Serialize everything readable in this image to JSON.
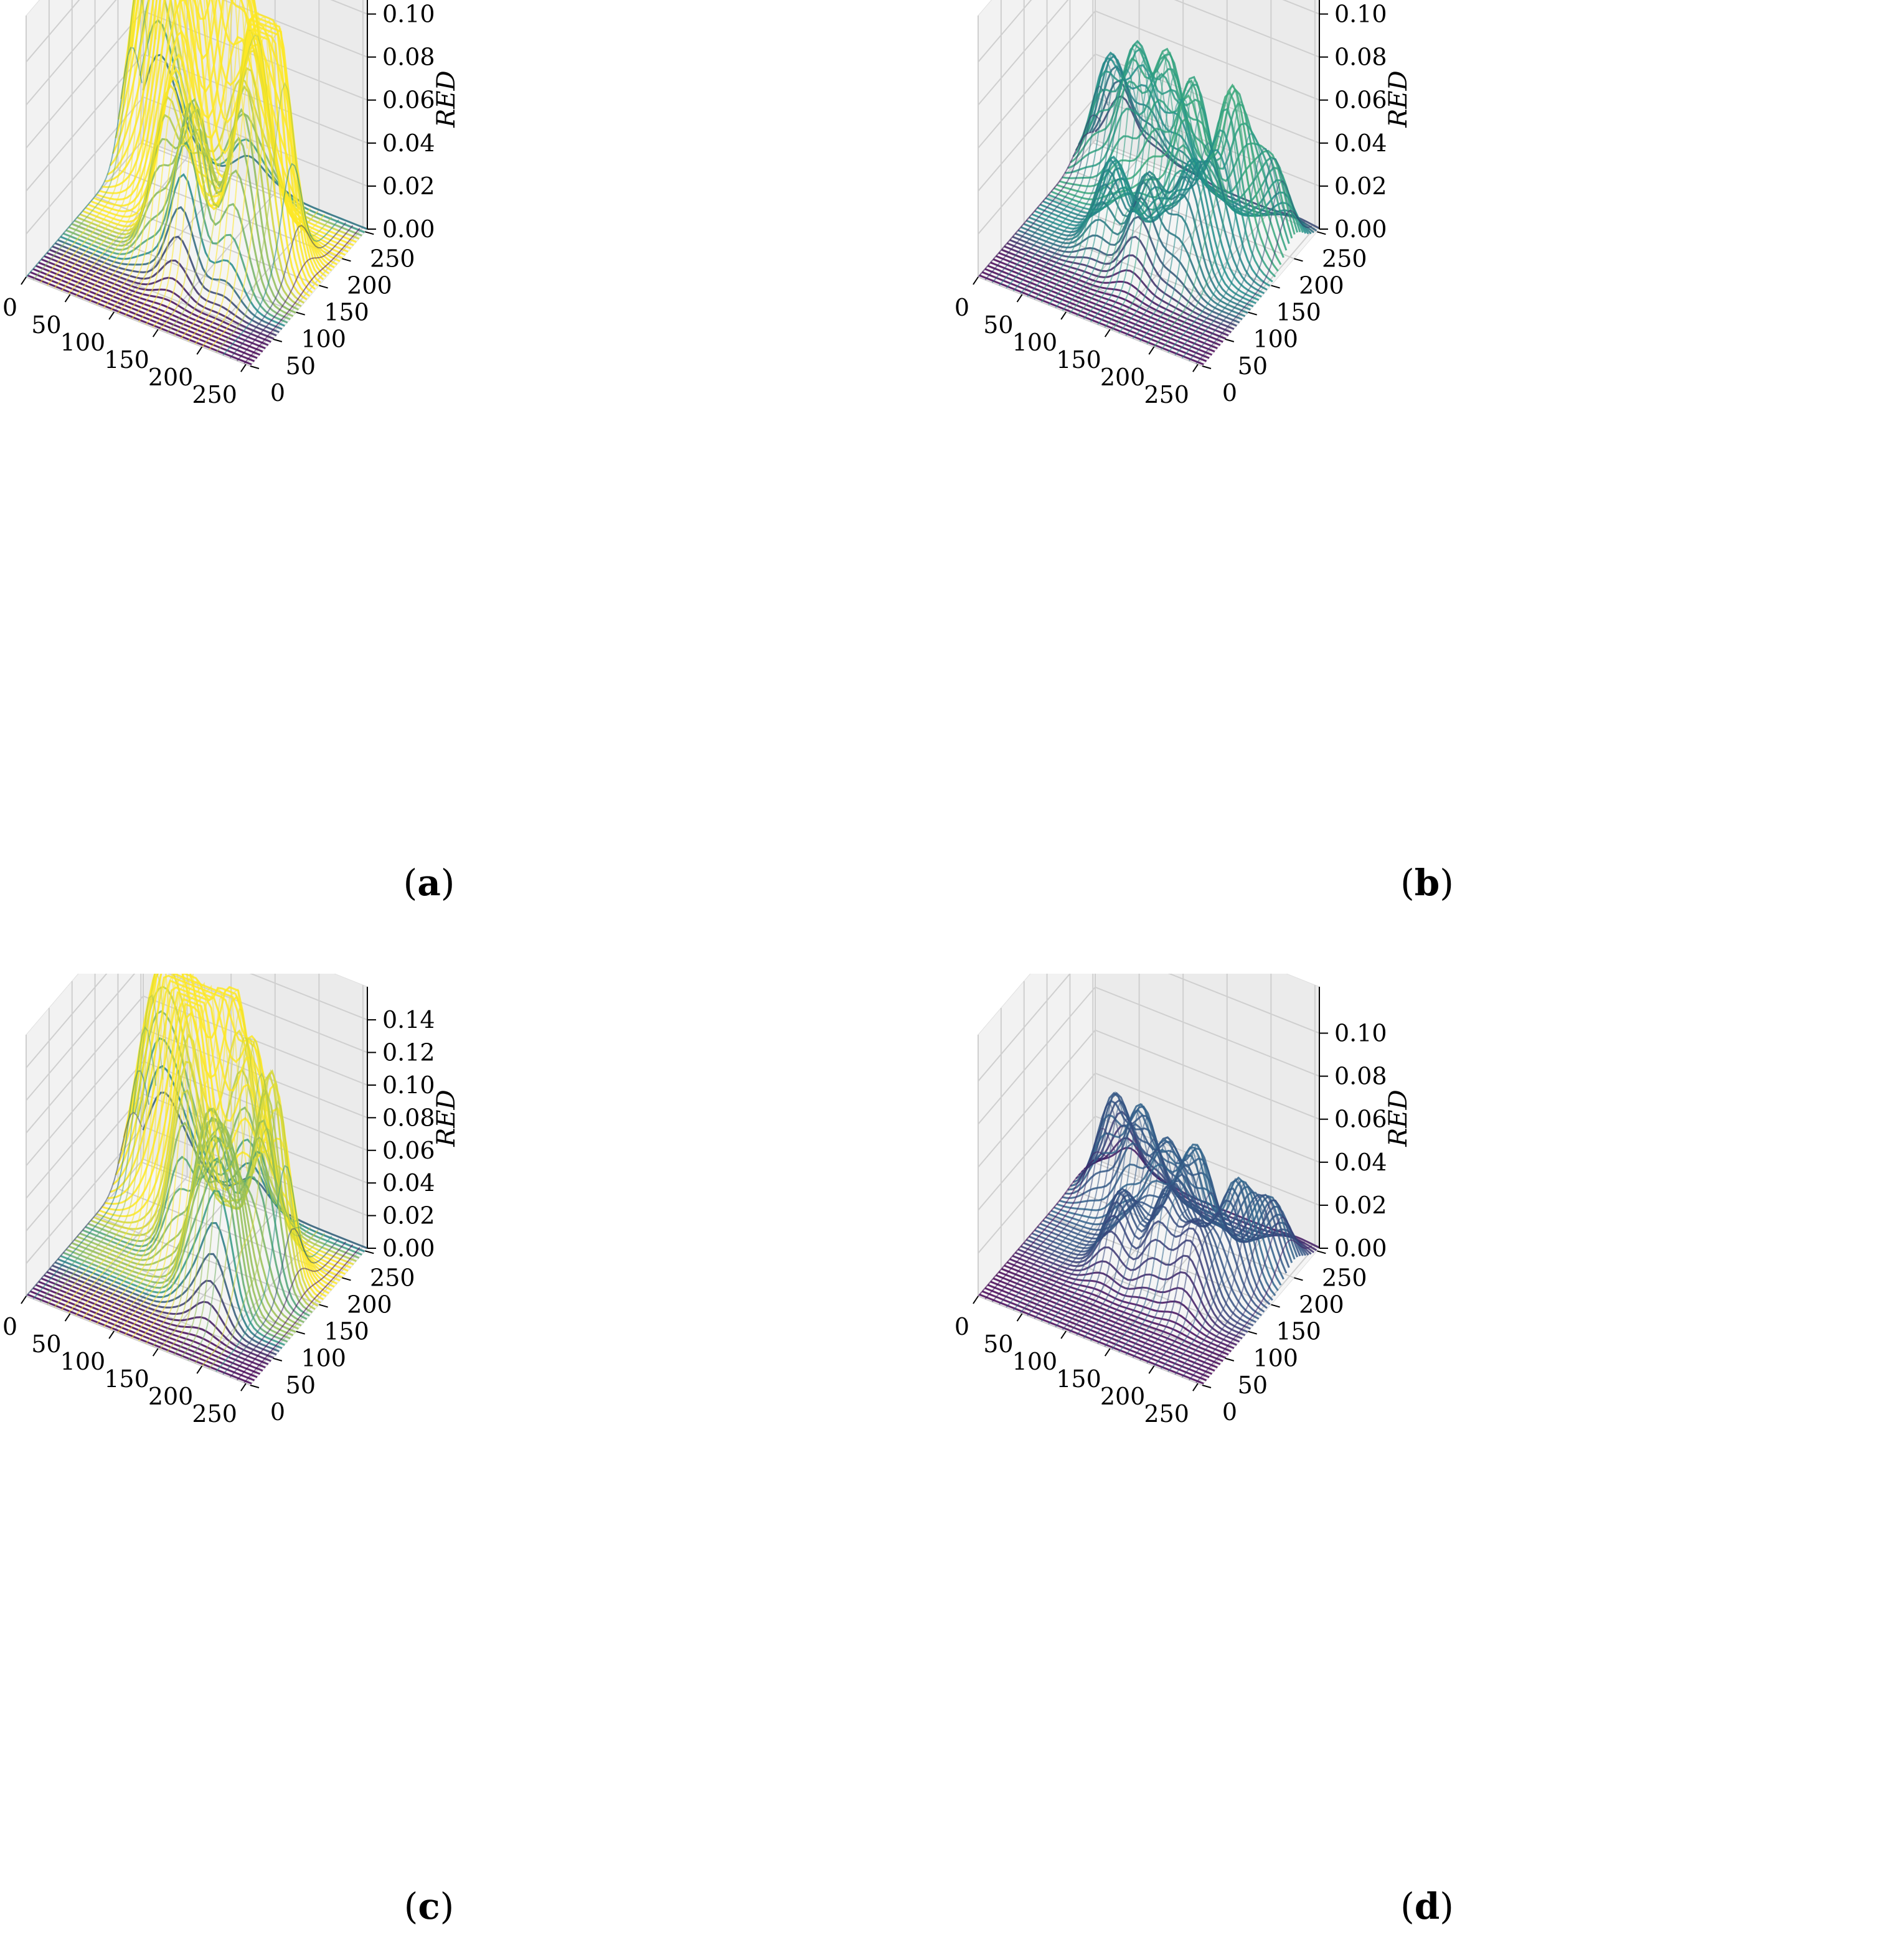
{
  "chart_data": [
    {
      "id": "a",
      "type": "surface3d",
      "caption": "a",
      "zlabel": "RED",
      "x_ticks": [
        "0",
        "50",
        "100",
        "150",
        "200",
        "250"
      ],
      "y_ticks": [
        "0",
        "50",
        "100",
        "150",
        "200",
        "250"
      ],
      "z_ticks": [
        "0.00",
        "0.02",
        "0.04",
        "0.06",
        "0.08",
        "0.10"
      ],
      "xlim": [
        0,
        255
      ],
      "ylim": [
        0,
        255
      ],
      "zlim": [
        0,
        0.11
      ],
      "colormap": "viridis",
      "colors": {
        "low": "#440154",
        "mid": "#21918c",
        "high": "#fde725"
      },
      "peaks": [
        {
          "x": 15,
          "y": 230,
          "z": 0.07
        },
        {
          "x": 35,
          "y": 215,
          "z": 0.09
        },
        {
          "x": 60,
          "y": 200,
          "z": 0.1
        },
        {
          "x": 80,
          "y": 180,
          "z": 0.105
        },
        {
          "x": 105,
          "y": 170,
          "z": 0.095
        },
        {
          "x": 120,
          "y": 210,
          "z": 0.11
        },
        {
          "x": 150,
          "y": 200,
          "z": 0.09
        },
        {
          "x": 175,
          "y": 160,
          "z": 0.095
        },
        {
          "x": 205,
          "y": 150,
          "z": 0.105
        },
        {
          "x": 100,
          "y": 120,
          "z": 0.065
        },
        {
          "x": 140,
          "y": 95,
          "z": 0.08
        },
        {
          "x": 190,
          "y": 110,
          "z": 0.075
        }
      ]
    },
    {
      "id": "b",
      "type": "surface3d",
      "caption": "b",
      "zlabel": "RED",
      "x_ticks": [
        "0",
        "50",
        "100",
        "150",
        "200",
        "250"
      ],
      "y_ticks": [
        "0",
        "50",
        "100",
        "150",
        "200",
        "250"
      ],
      "z_ticks": [
        "0.00",
        "0.02",
        "0.04",
        "0.06",
        "0.08",
        "0.10"
      ],
      "xlim": [
        0,
        255
      ],
      "ylim": [
        0,
        255
      ],
      "zlim": [
        0,
        0.11
      ],
      "colormap": "viridis",
      "colors": {
        "low": "#440154",
        "mid": "#21918c",
        "high": "#5ec962"
      },
      "peaks": [
        {
          "x": 30,
          "y": 230,
          "z": 0.05
        },
        {
          "x": 70,
          "y": 210,
          "z": 0.065
        },
        {
          "x": 110,
          "y": 200,
          "z": 0.07
        },
        {
          "x": 150,
          "y": 180,
          "z": 0.07
        },
        {
          "x": 200,
          "y": 170,
          "z": 0.075
        },
        {
          "x": 180,
          "y": 120,
          "z": 0.05
        },
        {
          "x": 140,
          "y": 100,
          "z": 0.045
        },
        {
          "x": 230,
          "y": 200,
          "z": 0.04
        },
        {
          "x": 90,
          "y": 120,
          "z": 0.04
        }
      ]
    },
    {
      "id": "c",
      "type": "surface3d",
      "caption": "c",
      "zlabel": "RED",
      "x_ticks": [
        "0",
        "50",
        "100",
        "150",
        "200",
        "250"
      ],
      "y_ticks": [
        "0",
        "50",
        "100",
        "150",
        "200",
        "250"
      ],
      "z_ticks": [
        "0.00",
        "0.02",
        "0.04",
        "0.06",
        "0.08",
        "0.10",
        "0.12",
        "0.14"
      ],
      "xlim": [
        0,
        255
      ],
      "ylim": [
        0,
        255
      ],
      "zlim": [
        0,
        0.145
      ],
      "colormap": "viridis",
      "colors": {
        "low": "#440154",
        "mid": "#21918c",
        "high": "#fde725"
      },
      "peaks": [
        {
          "x": 20,
          "y": 230,
          "z": 0.08
        },
        {
          "x": 45,
          "y": 215,
          "z": 0.11
        },
        {
          "x": 70,
          "y": 200,
          "z": 0.13
        },
        {
          "x": 95,
          "y": 185,
          "z": 0.135
        },
        {
          "x": 125,
          "y": 210,
          "z": 0.14
        },
        {
          "x": 110,
          "y": 150,
          "z": 0.1
        },
        {
          "x": 160,
          "y": 190,
          "z": 0.12
        },
        {
          "x": 200,
          "y": 150,
          "z": 0.13
        },
        {
          "x": 150,
          "y": 110,
          "z": 0.1
        },
        {
          "x": 180,
          "y": 90,
          "z": 0.095
        }
      ]
    },
    {
      "id": "d",
      "type": "surface3d",
      "caption": "d",
      "zlabel": "RED",
      "x_ticks": [
        "0",
        "50",
        "100",
        "150",
        "200",
        "250"
      ],
      "y_ticks": [
        "0",
        "50",
        "100",
        "150",
        "200",
        "250"
      ],
      "z_ticks": [
        "0.00",
        "0.02",
        "0.04",
        "0.06",
        "0.08",
        "0.10"
      ],
      "xlim": [
        0,
        255
      ],
      "ylim": [
        0,
        255
      ],
      "zlim": [
        0,
        0.11
      ],
      "colormap": "viridis",
      "colors": {
        "low": "#440154",
        "mid": "#31688e",
        "high": "#35b779"
      },
      "peaks": [
        {
          "x": 40,
          "y": 220,
          "z": 0.045
        },
        {
          "x": 80,
          "y": 200,
          "z": 0.05
        },
        {
          "x": 120,
          "y": 180,
          "z": 0.045
        },
        {
          "x": 160,
          "y": 170,
          "z": 0.05
        },
        {
          "x": 210,
          "y": 160,
          "z": 0.045
        },
        {
          "x": 150,
          "y": 120,
          "z": 0.04
        },
        {
          "x": 190,
          "y": 110,
          "z": 0.035
        },
        {
          "x": 100,
          "y": 120,
          "z": 0.035
        },
        {
          "x": 230,
          "y": 200,
          "z": 0.03
        }
      ]
    }
  ]
}
